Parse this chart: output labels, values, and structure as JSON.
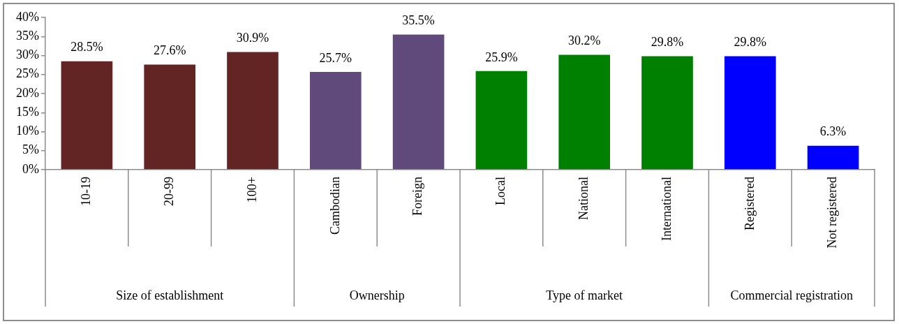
{
  "chart_data": {
    "type": "bar",
    "categories": [
      "10-19",
      "20-99",
      "100+",
      "Cambodian",
      "Foreign",
      "Local",
      "National",
      "International",
      "Registered",
      "Not registered"
    ],
    "values": [
      28.5,
      27.6,
      30.9,
      25.7,
      35.5,
      25.9,
      30.2,
      29.8,
      29.8,
      6.3
    ],
    "value_labels": [
      "28.5%",
      "27.6%",
      "30.9%",
      "25.7%",
      "35.5%",
      "25.9%",
      "30.2%",
      "29.8%",
      "29.8%",
      "6.3%"
    ],
    "colors": [
      "#632523",
      "#632523",
      "#632523",
      "#604a7b",
      "#604a7b",
      "#008000",
      "#008000",
      "#008000",
      "#0000ff",
      "#0000ff"
    ],
    "annotations": [
      "Size of establishment",
      "Ownership",
      "Type of market",
      "Commercial registration"
    ],
    "ylim": [
      0,
      40
    ],
    "yticks": [
      {
        "value": 0,
        "label": "0%"
      },
      {
        "value": 5,
        "label": "5%"
      },
      {
        "value": 10,
        "label": "10%"
      },
      {
        "value": 15,
        "label": "15%"
      },
      {
        "value": 20,
        "label": "20%"
      },
      {
        "value": 25,
        "label": "25%"
      },
      {
        "value": 30,
        "label": "30%"
      },
      {
        "value": 35,
        "label": "35%"
      },
      {
        "value": 40,
        "label": "40%"
      }
    ],
    "grid": false,
    "legend": false
  }
}
